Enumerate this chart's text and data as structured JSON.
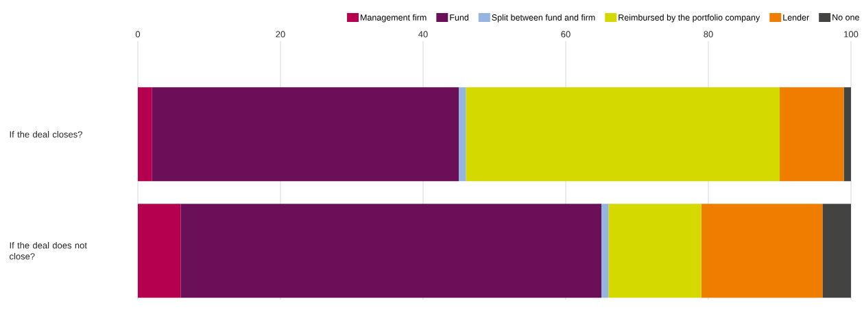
{
  "chart_data": {
    "type": "bar",
    "orientation": "horizontal",
    "stacked": true,
    "categories": [
      "If the deal closes?",
      "If the deal does not close?"
    ],
    "series": [
      {
        "name": "Management firm",
        "color": "#b5004f",
        "values": [
          2,
          6
        ]
      },
      {
        "name": "Fund",
        "color": "#6b0f59",
        "values": [
          43,
          59
        ]
      },
      {
        "name": "Split between fund and firm",
        "color": "#95b5e0",
        "values": [
          1,
          1
        ]
      },
      {
        "name": "Reimbursed by the portfolio company",
        "color": "#d4d900",
        "values": [
          44,
          13
        ]
      },
      {
        "name": "Lender",
        "color": "#ef7d00",
        "values": [
          9,
          17
        ]
      },
      {
        "name": "No one",
        "color": "#434341",
        "values": [
          1,
          4
        ]
      }
    ],
    "xlim": [
      0,
      100
    ],
    "xticks": [
      0,
      20,
      40,
      60,
      80,
      100
    ],
    "grid": "x",
    "legend": "top"
  }
}
